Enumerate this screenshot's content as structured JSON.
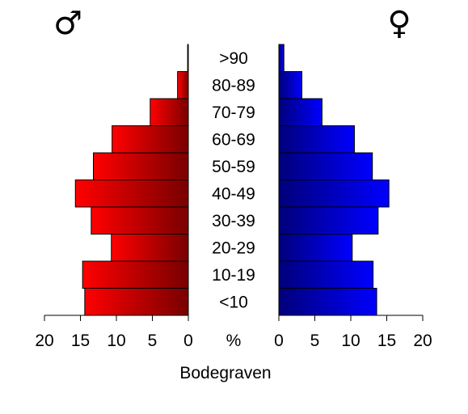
{
  "chart_data": {
    "type": "bar",
    "subtype": "population-pyramid",
    "title": "Bodegraven",
    "center_axis_label": "%",
    "male_symbol": "♂",
    "female_symbol": "♀",
    "categories": [
      ">90",
      "80-89",
      "70-79",
      "60-69",
      "50-59",
      "40-49",
      "30-39",
      "20-29",
      "10-19",
      "<10"
    ],
    "series": [
      {
        "side": "left",
        "color": "#ff0000",
        "values": [
          0.1,
          1.5,
          5.3,
          10.6,
          13.2,
          15.7,
          13.5,
          10.7,
          14.7,
          14.4
        ]
      },
      {
        "side": "right",
        "color": "#0000ff",
        "values": [
          0.7,
          3.2,
          6.0,
          10.5,
          13.0,
          15.3,
          13.8,
          10.2,
          13.1,
          13.6
        ]
      }
    ],
    "xlim": [
      0,
      20
    ],
    "xticks": [
      0,
      5,
      10,
      15,
      20
    ],
    "xtick_labels": [
      "0",
      "5",
      "10",
      "15",
      "20"
    ],
    "male_xtick_labels": [
      "20",
      "15",
      "10",
      "5",
      "0"
    ]
  }
}
